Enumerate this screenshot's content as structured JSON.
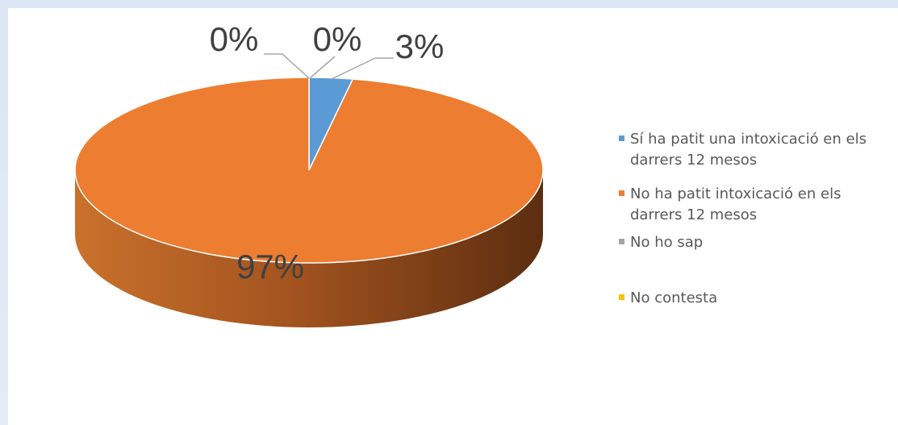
{
  "chart_data": {
    "type": "pie",
    "title": "",
    "categories": [
      "Sí ha patit una intoxicació en els darrers 12 mesos",
      "No ha patit intoxicació en els darrers 12 mesos",
      "No ho sap",
      "No contesta"
    ],
    "values": [
      3,
      97,
      0,
      0
    ],
    "labels": [
      "3%",
      "97%",
      "0%",
      "0%"
    ],
    "colors": [
      "#5b9bd5",
      "#ed7d31",
      "#a5a5a5",
      "#ffc000"
    ],
    "legend_position": "right",
    "style": "3d-pie"
  }
}
